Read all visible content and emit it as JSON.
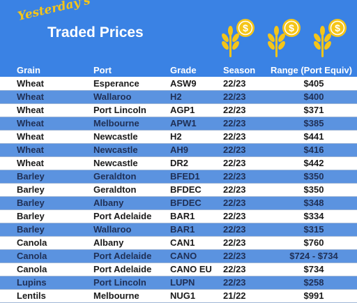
{
  "header": {
    "subtitle": "Yesterday's",
    "title": "Traded Prices",
    "icons": [
      "wheat-coin-icon",
      "wheat-coin-icon",
      "wheat-coin-icon"
    ],
    "colors": {
      "background": "#3a82e4",
      "accent": "#f5c518"
    }
  },
  "table": {
    "columns": [
      "Grain",
      "Port",
      "Grade",
      "Season",
      "Range (Port Equiv)"
    ],
    "rows": [
      [
        "Wheat",
        "Esperance",
        "ASW9",
        "22/23",
        "$405"
      ],
      [
        "Wheat",
        "Wallaroo",
        "H2",
        "22/23",
        "$400"
      ],
      [
        "Wheat",
        "Port Lincoln",
        "AGP1",
        "22/23",
        "$371"
      ],
      [
        "Wheat",
        "Melbourne",
        "APW1",
        "22/23",
        "$385"
      ],
      [
        "Wheat",
        "Newcastle",
        "H2",
        "22/23",
        "$441"
      ],
      [
        "Wheat",
        "Newcastle",
        "AH9",
        "22/23",
        "$416"
      ],
      [
        "Wheat",
        "Newcastle",
        "DR2",
        "22/23",
        "$442"
      ],
      [
        "Barley",
        "Geraldton",
        "BFED1",
        "22/23",
        "$350"
      ],
      [
        "Barley",
        "Geraldton",
        "BFDEC",
        "22/23",
        "$350"
      ],
      [
        "Barley",
        "Albany",
        "BFDEC",
        "22/23",
        "$348"
      ],
      [
        "Barley",
        "Port Adelaide",
        "BAR1",
        "22/23",
        "$334"
      ],
      [
        "Barley",
        "Wallaroo",
        "BAR1",
        "22/23",
        "$315"
      ],
      [
        "Canola",
        "Albany",
        "CAN1",
        "22/23",
        "$760"
      ],
      [
        "Canola",
        "Port Adelaide",
        "CANO",
        "22/23",
        "$724 - $734"
      ],
      [
        "Canola",
        "Port Adelaide",
        "CANO EU",
        "22/23",
        "$734"
      ],
      [
        "Lupins",
        "Port Lincoln",
        "LUPN",
        "22/23",
        "$258"
      ],
      [
        "Lentils",
        "Melbourne",
        "NUG1",
        "21/22",
        "$991"
      ]
    ]
  }
}
